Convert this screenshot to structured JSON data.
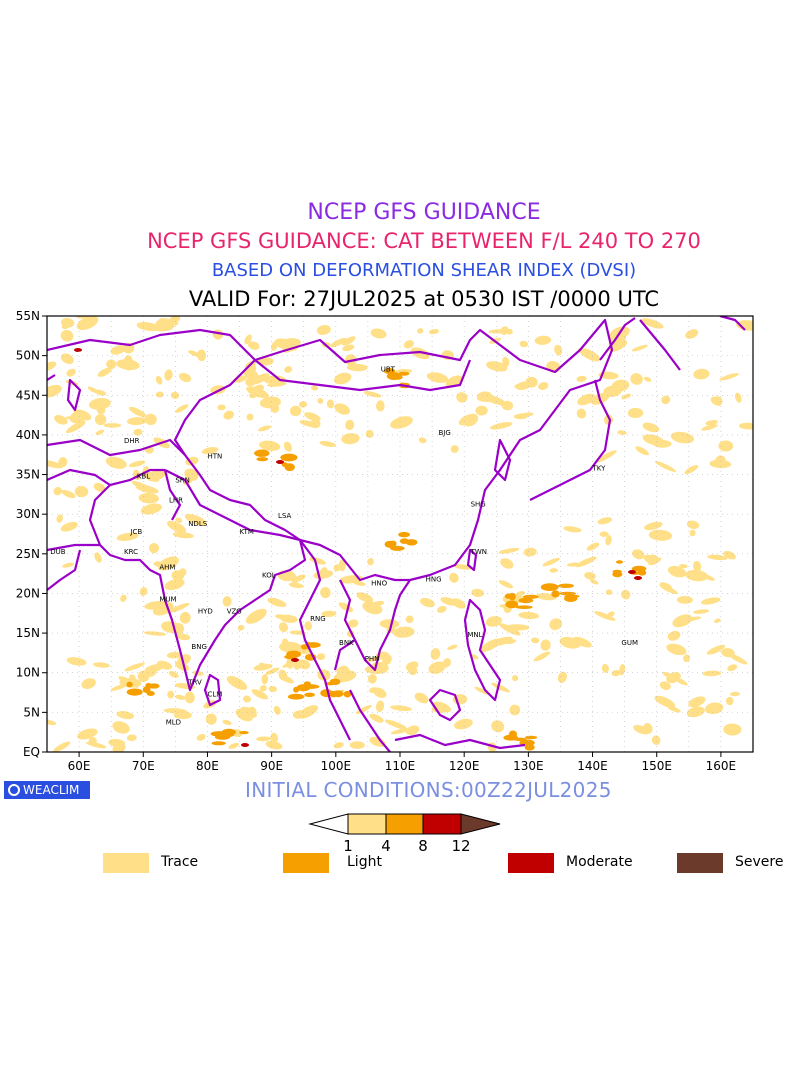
{
  "header": {
    "title1": "NCEP GFS GUIDANCE",
    "title2": "NCEP GFS GUIDANCE: CAT BETWEEN F/L 240 TO 270",
    "title3": "BASED ON DEFORMATION SHEAR INDEX (DVSI)",
    "valid": "VALID For: 27JUL2025 at 0530 IST /0000 UTC"
  },
  "map": {
    "lat_labels": [
      "55N",
      "50N",
      "45N",
      "40N",
      "35N",
      "30N",
      "25N",
      "20N",
      "15N",
      "10N",
      "5N",
      "EQ"
    ],
    "lon_labels": [
      "60E",
      "70E",
      "80E",
      "90E",
      "100E",
      "110E",
      "120E",
      "130E",
      "140E",
      "150E",
      "160E"
    ],
    "stations": [
      "UBT",
      "BJG",
      "DHR",
      "HTN",
      "KBL",
      "SRN",
      "LHR",
      "TKY",
      "SHG",
      "JCB",
      "NDLS",
      "KTM",
      "LSA",
      "DUB",
      "KRC",
      "TWN",
      "AHM",
      "KOL",
      "HNO",
      "HNG",
      "MUM",
      "HYD",
      "VZG",
      "RNG",
      "MNL",
      "BNK",
      "GUM",
      "BNG",
      "PHN",
      "TRV",
      "CLM",
      "MLD"
    ],
    "colors": {
      "trace": "#ffe088",
      "light": "#f5a000",
      "moderate": "#c00000",
      "severe": "#6b3a2a",
      "border": "#9a00c8"
    }
  },
  "colorbar": {
    "ticks": [
      "1",
      "4",
      "8",
      "12"
    ]
  },
  "legend": [
    {
      "label": "Trace",
      "color": "#ffe088"
    },
    {
      "label": "Light",
      "color": "#f5a000"
    },
    {
      "label": "Moderate",
      "color": "#c00000"
    },
    {
      "label": "Severe",
      "color": "#6b3a2a"
    }
  ],
  "footer": {
    "logo": "WEACLIM",
    "initial": "INITIAL CONDITIONS:00Z22JUL2025"
  }
}
